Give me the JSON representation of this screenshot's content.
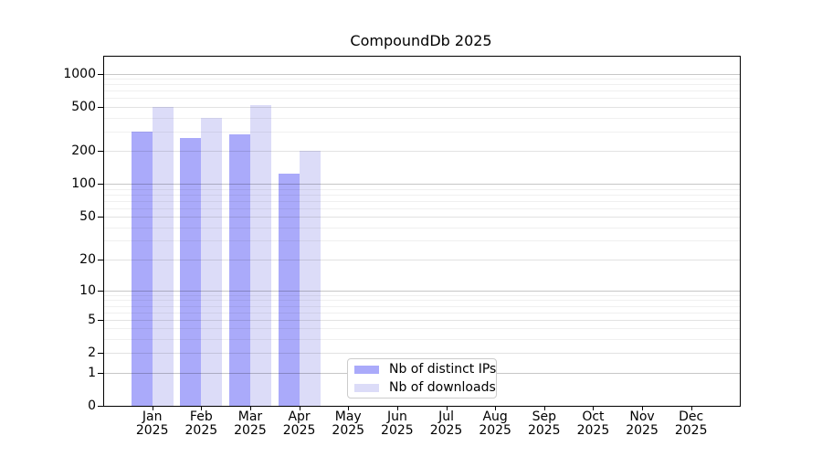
{
  "figure": {
    "title": "CompoundDb 2025"
  },
  "chart_data": {
    "type": "bar",
    "title": "CompoundDb 2025",
    "categories": [
      "Jan 2025",
      "Feb 2025",
      "Mar 2025",
      "Apr 2025",
      "May 2025",
      "Jun 2025",
      "Jul 2025",
      "Aug 2025",
      "Sep 2025",
      "Oct 2025",
      "Nov 2025",
      "Dec 2025"
    ],
    "series": [
      {
        "name": "Nb of distinct IPs",
        "color": "#aaaafa",
        "values": [
          300,
          260,
          280,
          125,
          null,
          null,
          null,
          null,
          null,
          null,
          null,
          null
        ]
      },
      {
        "name": "Nb of downloads",
        "color": "#dcdcf8",
        "values": [
          500,
          400,
          520,
          200,
          null,
          null,
          null,
          null,
          null,
          null,
          null,
          null
        ]
      }
    ],
    "yscale": "log1p",
    "yticks": [
      0,
      1,
      2,
      5,
      10,
      20,
      50,
      100,
      200,
      500,
      1000
    ],
    "ylim": [
      0,
      1450
    ],
    "xlabel": "",
    "ylabel": "",
    "grid": "horizontal-on",
    "legend_position": "lower-center-inside"
  }
}
